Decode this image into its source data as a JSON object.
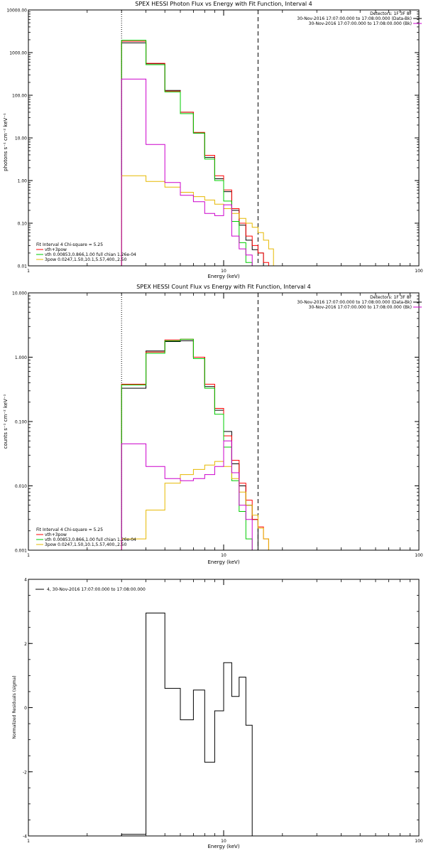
{
  "chart_data": [
    {
      "type": "line",
      "title": "SPEX HESSI Photon Flux vs Energy with Fit Function, Interval 4",
      "xlabel": "Energy (keV)",
      "ylabel": "photons s⁻¹ cm⁻² keV⁻¹",
      "xscale": "log",
      "yscale": "log",
      "xlim": [
        1,
        100
      ],
      "ylim": [
        0.01,
        10000
      ],
      "x_ticks": [
        "1",
        "10",
        "100"
      ],
      "y_ticks": [
        "10000.00",
        "1000.00",
        "100.00",
        "10.00",
        "1.00",
        "0.10",
        "0.01"
      ],
      "vlines": [
        {
          "x": 3.0,
          "style": "dotted"
        },
        {
          "x": 15.0,
          "style": "dashed"
        }
      ],
      "legend_top": [
        "Detectors: 1F 3F 8F",
        "30-Nov-2016 17:07:00.000 to 17:08:00.000 (Data-Bk)",
        "30-Nov-2016 17:07:00.000 to 17:08:00.000 (Bk)"
      ],
      "legend_bottom": [
        "Fit Interval 4   Chi-square = 5.25",
        "vth+3pow",
        "vth 0.00853,0.866,1.00  full chian 1.26e-04",
        "3pow 0.0247,1.50,10.1,5.57,400.,2.50"
      ],
      "bin_edges": [
        3.0,
        4.0,
        5.0,
        6.0,
        7.0,
        8.0,
        9.0,
        10.0,
        11.0,
        12.0,
        13.0,
        14.0,
        15.0,
        16.0,
        17.0,
        18.0
      ],
      "series": [
        {
          "name": "30-Nov-2016 17:07:00.000 to 17:08:00.000 (Data-Bk)",
          "color": "#000000",
          "values": [
            1700,
            550,
            130,
            40,
            13,
            3.5,
            1.1,
            0.55,
            0.2,
            0.09,
            0.04,
            0.024,
            0.02,
            null,
            null
          ]
        },
        {
          "name": "vth+3pow",
          "color": "#ff0000",
          "values": [
            1850,
            560,
            125,
            40,
            13.5,
            3.9,
            1.3,
            0.6,
            0.22,
            0.1,
            0.05,
            0.03,
            0.02,
            0.012,
            null
          ]
        },
        {
          "name": "vth 0.00853,0.866,1.00  full chian 1.26e-04",
          "color": "#00cc00",
          "values": [
            1950,
            520,
            120,
            37,
            13,
            3.2,
            1.0,
            0.33,
            0.11,
            0.035,
            0.012,
            null,
            null,
            null,
            null
          ]
        },
        {
          "name": "3pow 0.0247,1.50,10.1,5.57,400.,2.50",
          "color": "#e6b800",
          "values": [
            1.3,
            0.95,
            0.7,
            0.53,
            0.42,
            0.35,
            0.28,
            0.22,
            0.17,
            0.13,
            0.1,
            0.08,
            0.06,
            0.04,
            0.025
          ]
        },
        {
          "name": "30-Nov-2016 17:07:00.000 to 17:08:00.000 (Bk)",
          "color": "#cc00cc",
          "values": [
            240,
            7,
            0.9,
            0.45,
            0.32,
            0.17,
            0.15,
            0.27,
            0.05,
            0.025,
            0.018,
            null,
            null,
            null,
            null
          ]
        }
      ]
    },
    {
      "type": "line",
      "title": "SPEX HESSI Count Flux vs Energy with Fit Function, Interval 4",
      "xlabel": "Energy (keV)",
      "ylabel": "counts s⁻¹ cm⁻² keV⁻¹",
      "xscale": "log",
      "yscale": "log",
      "xlim": [
        1,
        100
      ],
      "ylim": [
        0.001,
        10
      ],
      "x_ticks": [
        "1",
        "10",
        "100"
      ],
      "y_ticks": [
        "10.000",
        "1.000",
        "0.100",
        "0.010",
        "0.001"
      ],
      "vlines": [
        {
          "x": 3.0,
          "style": "dotted"
        },
        {
          "x": 15.0,
          "style": "dashed"
        }
      ],
      "legend_top": [
        "Detectors: 1F 3F 8F",
        "30-Nov-2016 17:07:00.000 to 17:08:00.000 (Data-Bk)",
        "30-Nov-2016 17:07:00.000 to 17:08:00.000 (Bk)"
      ],
      "legend_bottom": [
        "Fit Interval 4   Chi-square = 5.25",
        "vth+3pow",
        "vth 0.00853,0.866,1.00  full chian 1.26e-04",
        "3pow 0.0247,1.50,10.1,5.57,400.,2.50"
      ],
      "bin_edges": [
        3.0,
        4.0,
        5.0,
        6.0,
        7.0,
        8.0,
        9.0,
        10.0,
        11.0,
        12.0,
        13.0,
        14.0,
        15.0,
        16.0,
        17.0,
        18.0
      ],
      "series": [
        {
          "name": "30-Nov-2016 17:07:00.000 to 17:08:00.000 (Data-Bk)",
          "color": "#000000",
          "values": [
            0.33,
            1.25,
            1.75,
            1.8,
            1.0,
            0.35,
            0.15,
            0.07,
            0.022,
            0.01,
            0.005,
            0.003,
            null,
            null,
            null
          ]
        },
        {
          "name": "vth+3pow",
          "color": "#ff0000",
          "values": [
            0.38,
            1.2,
            1.85,
            1.9,
            1.0,
            0.38,
            0.16,
            0.06,
            0.025,
            0.011,
            0.006,
            0.003,
            0.0023,
            0.0015,
            null
          ]
        },
        {
          "name": "vth 0.00853,0.866,1.00  full chian 1.26e-04",
          "color": "#00cc00",
          "values": [
            0.37,
            1.15,
            1.8,
            1.9,
            0.95,
            0.33,
            0.13,
            0.04,
            0.012,
            0.004,
            0.0015,
            null,
            null,
            null,
            null
          ]
        },
        {
          "name": "3pow 0.0247,1.50,10.1,5.57,400.,2.50",
          "color": "#e6b800",
          "values": [
            0.0015,
            0.0042,
            0.011,
            0.015,
            0.018,
            0.021,
            0.024,
            0.02,
            0.013,
            0.008,
            0.005,
            0.0035,
            0.0022,
            0.0015,
            0.001
          ]
        },
        {
          "name": "30-Nov-2016 17:07:00.000 to 17:08:00.000 (Bk)",
          "color": "#cc00cc",
          "values": [
            0.045,
            0.02,
            0.013,
            0.012,
            0.013,
            0.015,
            0.02,
            0.05,
            0.016,
            0.005,
            0.003,
            null,
            null,
            null,
            null
          ]
        }
      ]
    },
    {
      "type": "line",
      "title": "",
      "xlabel": "Energy (keV)",
      "ylabel": "Normalized Residuals (sigma)",
      "xscale": "log",
      "yscale": "linear",
      "xlim": [
        1,
        100
      ],
      "ylim": [
        -4,
        4
      ],
      "x_ticks": [
        "1",
        "10",
        "100"
      ],
      "y_ticks": [
        "4",
        "2",
        "0",
        "-2",
        "-4"
      ],
      "legend": [
        "4, 30-Nov-2016 17:07:00.000 to 17:08:00.000"
      ],
      "bin_edges": [
        3.0,
        4.0,
        5.0,
        6.0,
        7.0,
        8.0,
        9.0,
        10.0,
        11.0,
        12.0,
        13.0,
        14.0,
        15.0
      ],
      "series": [
        {
          "name": "4, 30-Nov-2016 17:07:00.000 to 17:08:00.000",
          "color": "#000000",
          "values": [
            -3.95,
            2.95,
            0.6,
            -0.38,
            0.55,
            -1.7,
            -0.1,
            1.4,
            0.35,
            0.95,
            -0.55,
            null
          ]
        }
      ]
    }
  ]
}
